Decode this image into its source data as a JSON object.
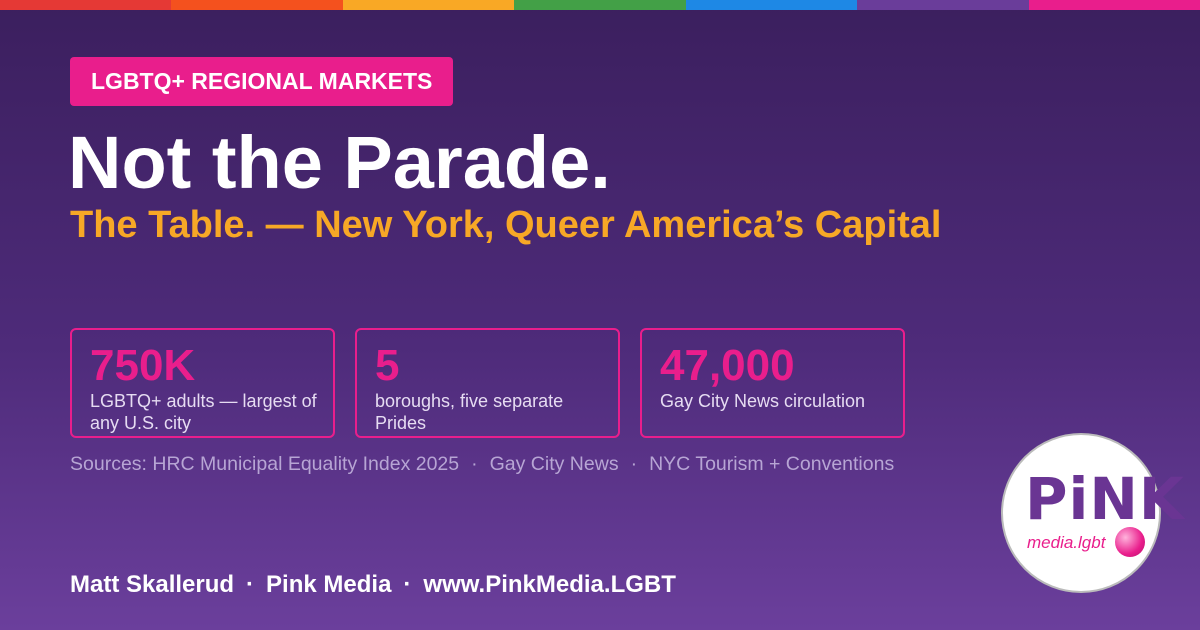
{
  "tag": "LGBTQ+ REGIONAL MARKETS",
  "title": "Not the Parade.",
  "subtitle": "The Table. — New York, Queer America’s Capital",
  "stats": [
    {
      "value": "750K",
      "label": "LGBTQ+ adults — largest of any U.S. city"
    },
    {
      "value": "5",
      "label": "boroughs, five separate Prides"
    },
    {
      "value": "47,000",
      "label": "Gay City News circulation"
    }
  ],
  "sources": {
    "items": [
      "Sources: HRC Municipal Equality Index 2025",
      "Gay City News",
      "NYC Tourism + Conventions"
    ],
    "separator": "·"
  },
  "footer": {
    "items": [
      "Matt Skallerud",
      "Pink Media",
      "www.PinkMedia.LGBT"
    ],
    "separator": "·"
  },
  "logo": {
    "wordmark": "PiNK",
    "subtext": "media.lgbt"
  }
}
